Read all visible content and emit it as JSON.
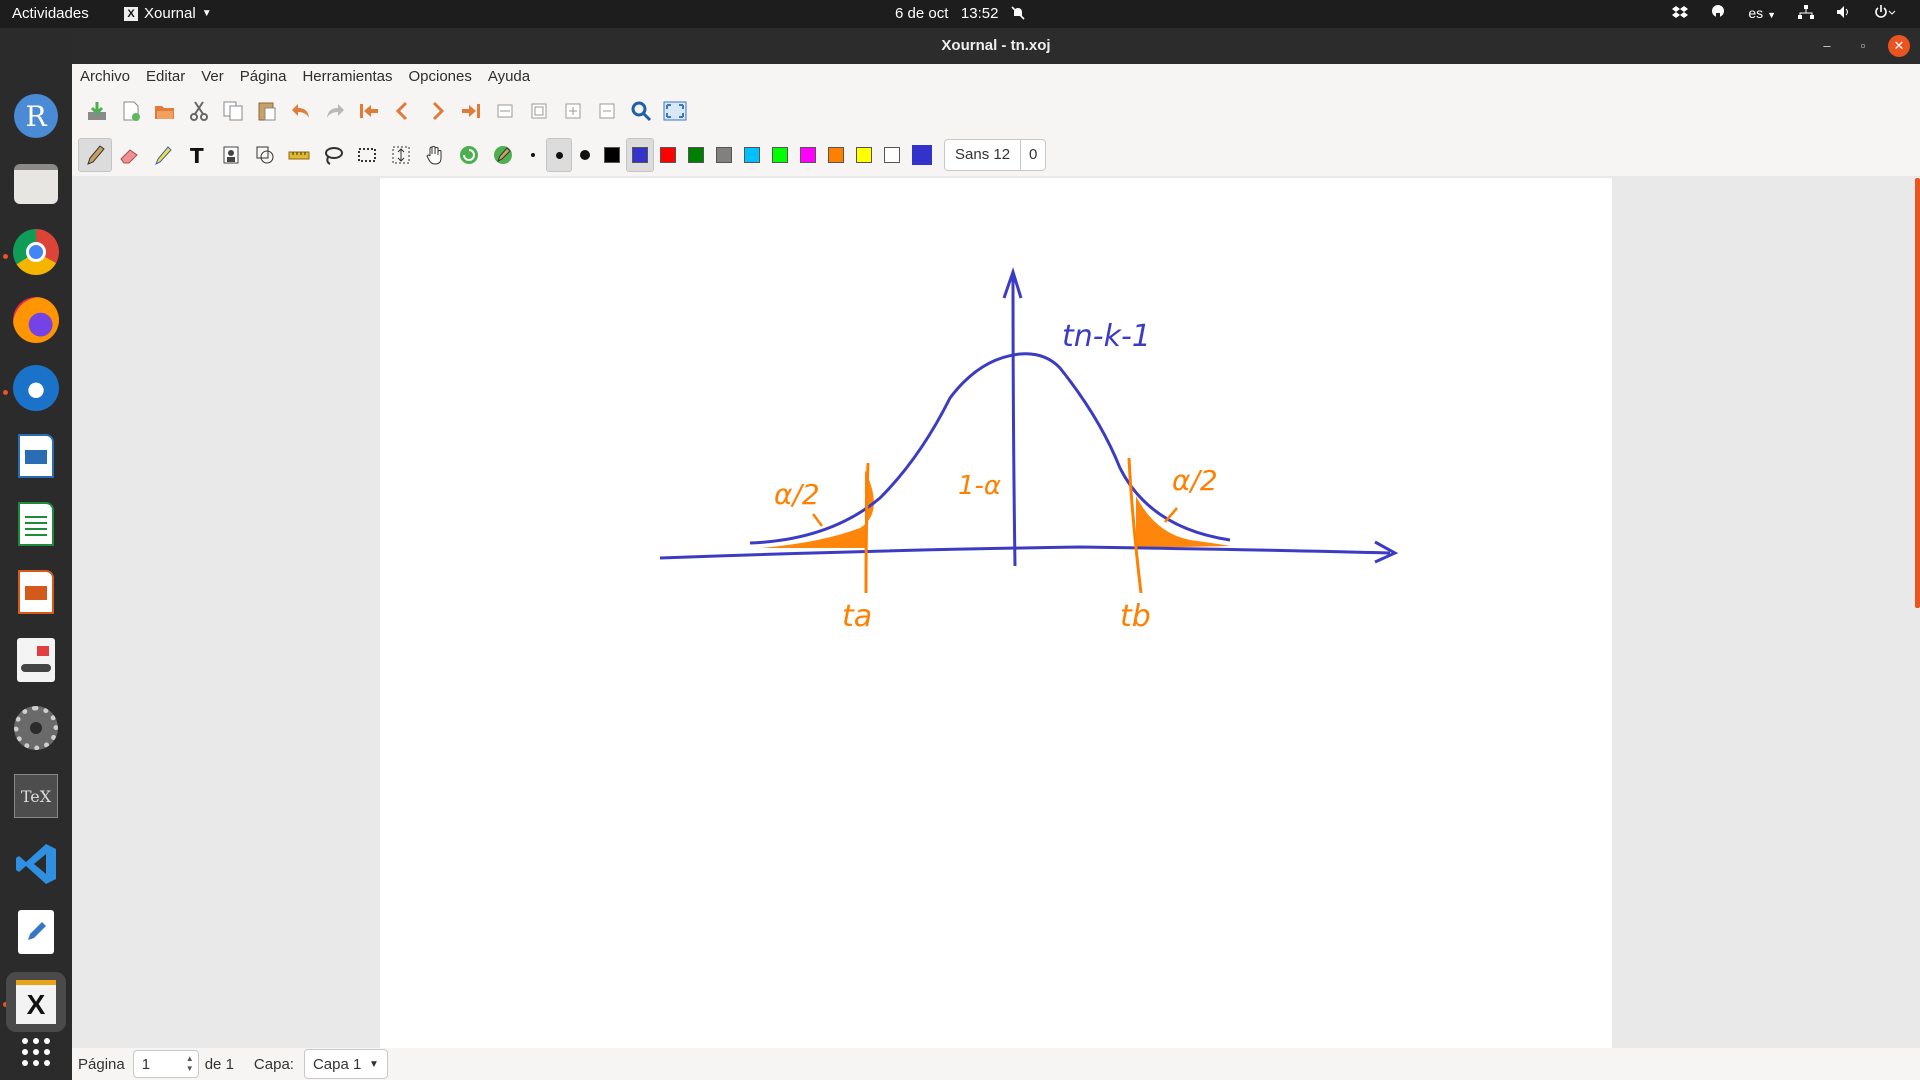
{
  "topbar": {
    "activities": "Actividades",
    "app_name": "Xournal",
    "date": "6 de oct",
    "time": "13:52",
    "language": "es"
  },
  "window": {
    "title": "Xournal - tn.xoj"
  },
  "menu": {
    "items": [
      "Archivo",
      "Editar",
      "Ver",
      "Página",
      "Herramientas",
      "Opciones",
      "Ayuda"
    ]
  },
  "toolbar1": {
    "icons": [
      "save-icon",
      "new-page-icon",
      "open-icon",
      "cut-icon",
      "copy-icon",
      "paste-icon",
      "undo-icon",
      "redo-icon",
      "first-page-icon",
      "previous-page-icon",
      "next-page-icon",
      "last-page-icon",
      "zoom-fit-width-icon",
      "zoom-fit-page-icon",
      "zoom-in-icon",
      "zoom-out-icon",
      "zoom-search-icon",
      "fullscreen-icon"
    ]
  },
  "toolbar2": {
    "tools": [
      "pen-icon",
      "eraser-icon",
      "highlighter-icon",
      "text-icon",
      "image-icon",
      "shape-recognizer-icon",
      "ruler-icon",
      "lasso-icon",
      "rect-select-icon",
      "vertical-space-icon",
      "hand-icon",
      "default-tool-icon",
      "default-pen-icon"
    ],
    "thickness": [
      "fine",
      "medium",
      "thick"
    ],
    "colors": [
      "#000000",
      "#3333cc",
      "#ff0000",
      "#008000",
      "#808080",
      "#00c0ff",
      "#00ff00",
      "#ff00ff",
      "#ff8000",
      "#ffff00",
      "#ffffff"
    ],
    "selected_color": "#3333cc",
    "current_color": "#3333cc",
    "font_name": "Sans 12",
    "font_extra": "0"
  },
  "drawing": {
    "label_peak": "tn-k-1",
    "label_center": "1-α",
    "label_left_tail": "α/2",
    "label_right_tail": "α/2",
    "label_ta": "ta",
    "label_tb": "tb",
    "stroke_color": "#3b3bc4",
    "accent_color": "#ff8000"
  },
  "statusbar": {
    "page_label": "Página",
    "page_value": "1",
    "page_of": "de 1",
    "layer_label": "Capa:",
    "layer_value": "Capa 1"
  }
}
